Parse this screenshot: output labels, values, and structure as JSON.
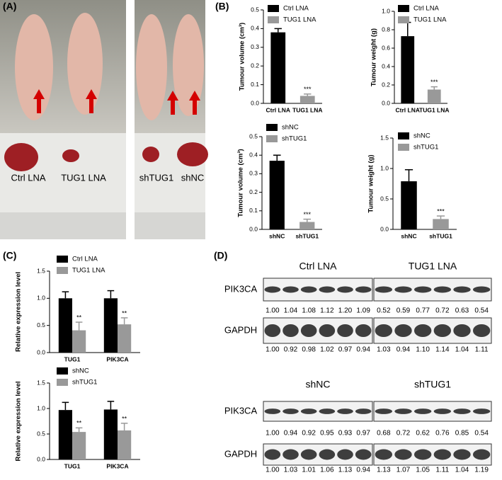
{
  "panels": [
    "(A)",
    "(B)",
    "(C)",
    "(D)"
  ],
  "photo": {
    "labels": [
      "Ctrl LNA",
      "TUG1 LNA",
      "shTUG1",
      "shNC"
    ]
  },
  "chart_data": [
    {
      "type": "bar",
      "y_label": "Tumour volume (cm³)",
      "categories": [
        "Ctrl LNA",
        "TUG1 LNA"
      ],
      "series": [
        {
          "name": "Ctrl LNA",
          "color": "#000000",
          "values": [
            0.38,
            null
          ],
          "errors": [
            0.02,
            null
          ]
        },
        {
          "name": "TUG1 LNA",
          "color": "#999999",
          "values": [
            null,
            0.04
          ],
          "errors": [
            null,
            0.01
          ],
          "significance": [
            null,
            "***"
          ]
        }
      ],
      "ylim": [
        0,
        0.5
      ],
      "yticks": [
        {
          "value": 0,
          "label": "0.0"
        },
        0.1,
        0.2,
        0.3,
        0.4,
        0.5
      ]
    },
    {
      "type": "bar",
      "y_label": "Tumour weight (g)",
      "categories": [
        "Ctrl LNA",
        "TUG1 LNA"
      ],
      "series": [
        {
          "name": "Ctrl LNA",
          "color": "#000000",
          "values": [
            0.73,
            null
          ],
          "errors": [
            0.15,
            null
          ]
        },
        {
          "name": "TUG1 LNA",
          "color": "#999999",
          "values": [
            null,
            0.15
          ],
          "errors": [
            null,
            0.03
          ],
          "significance": [
            null,
            "***"
          ]
        }
      ],
      "ylim": [
        0,
        1
      ],
      "yticks": [
        {
          "value": 0,
          "label": "0.0"
        },
        0.2,
        0.4,
        0.6,
        0.8,
        {
          "value": 1,
          "label": "1.0"
        }
      ]
    },
    {
      "type": "bar",
      "y_label": "Tumour volume (cm³)",
      "categories": [
        "shNC",
        "shTUG1"
      ],
      "series": [
        {
          "name": "shNC",
          "color": "#000000",
          "values": [
            0.37,
            null
          ],
          "errors": [
            0.03,
            null
          ]
        },
        {
          "name": "shTUG1",
          "color": "#999999",
          "values": [
            null,
            0.04
          ],
          "errors": [
            null,
            0.015
          ],
          "significance": [
            null,
            "***"
          ]
        }
      ],
      "ylim": [
        0,
        0.5
      ],
      "yticks": [
        {
          "value": 0,
          "label": "0.0"
        },
        0.1,
        0.2,
        0.3,
        0.4,
        0.5
      ]
    },
    {
      "type": "bar",
      "y_label": "Tumour weight (g)",
      "categories": [
        "shNC",
        "shTUG1"
      ],
      "series": [
        {
          "name": "shNC",
          "color": "#000000",
          "values": [
            0.79,
            null
          ],
          "errors": [
            0.19,
            null
          ]
        },
        {
          "name": "shTUG1",
          "color": "#999999",
          "values": [
            null,
            0.17
          ],
          "errors": [
            null,
            0.05
          ],
          "significance": [
            null,
            "***"
          ]
        }
      ],
      "ylim": [
        0,
        1.5
      ],
      "yticks": [
        {
          "value": 0,
          "label": "0.0"
        },
        0.5,
        {
          "value": 1,
          "label": "1.0"
        },
        1.5
      ]
    },
    {
      "type": "bar",
      "y_label": "Relative expression level",
      "categories": [
        "TUG1",
        "PIK3CA"
      ],
      "series": [
        {
          "name": "Ctrl LNA",
          "color": "#000000",
          "values": [
            1.0,
            1.0
          ],
          "errors": [
            0.12,
            0.14
          ]
        },
        {
          "name": "TUG1 LNA",
          "color": "#999999",
          "values": [
            0.41,
            0.52
          ],
          "errors": [
            0.15,
            0.12
          ],
          "significance": [
            "**",
            "**"
          ]
        }
      ],
      "ylim": [
        0,
        1.5
      ],
      "yticks": [
        {
          "value": 0,
          "label": "0.0"
        },
        0.5,
        {
          "value": 1,
          "label": "1.0"
        },
        1.5
      ]
    },
    {
      "type": "bar",
      "y_label": "Relative expression level",
      "categories": [
        "TUG1",
        "PIK3CA"
      ],
      "series": [
        {
          "name": "shNC",
          "color": "#000000",
          "values": [
            0.97,
            0.98
          ],
          "errors": [
            0.15,
            0.16
          ]
        },
        {
          "name": "shTUG1",
          "color": "#999999",
          "values": [
            0.54,
            0.57
          ],
          "errors": [
            0.08,
            0.14
          ],
          "significance": [
            "**",
            "**"
          ]
        }
      ],
      "ylim": [
        0,
        1.5
      ],
      "yticks": [
        {
          "value": 0,
          "label": "0.0"
        },
        0.5,
        {
          "value": 1,
          "label": "1.0"
        },
        1.5
      ]
    }
  ],
  "blots": [
    {
      "titles": [
        "Ctrl LNA",
        "TUG1 LNA"
      ],
      "rows": [
        {
          "label": "PIK3CA",
          "values": [
            [
              "1.00",
              "1.04",
              "1.08",
              "1.12",
              "1.20",
              "1.09"
            ],
            [
              "0.52",
              "0.59",
              "0.77",
              "0.72",
              "0.63",
              "0.54"
            ]
          ]
        },
        {
          "label": "GAPDH",
          "values": [
            [
              "1.00",
              "0.92",
              "0.98",
              "1.02",
              "0.97",
              "0.94"
            ],
            [
              "1.03",
              "0.94",
              "1.10",
              "1.14",
              "1.04",
              "1.11"
            ]
          ]
        }
      ]
    },
    {
      "titles": [
        "shNC",
        "shTUG1"
      ],
      "rows": [
        {
          "label": "PIK3CA",
          "values": [
            [
              "1.00",
              "0.94",
              "0.92",
              "0.95",
              "0.93",
              "0.97"
            ],
            [
              "0.68",
              "0.72",
              "0.62",
              "0.76",
              "0.85",
              "0.54"
            ]
          ]
        },
        {
          "label": "GAPDH",
          "values": [
            [
              "1.00",
              "1.03",
              "1.01",
              "1.06",
              "1.13",
              "0.94"
            ],
            [
              "1.13",
              "1.07",
              "1.05",
              "1.11",
              "1.04",
              "1.19"
            ]
          ]
        }
      ]
    }
  ]
}
